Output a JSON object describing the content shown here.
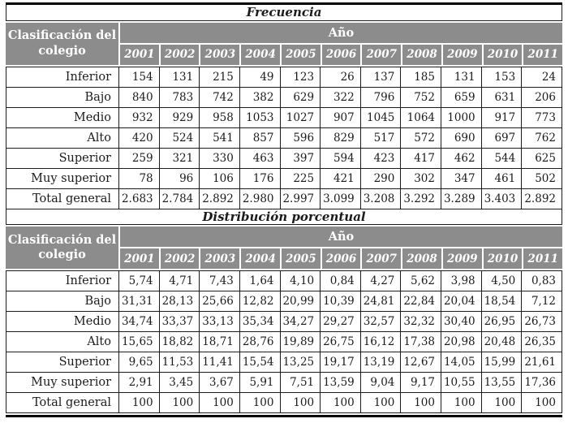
{
  "colors": {
    "header_bg": "#8c8c8c",
    "header_text": "#ffffff",
    "grid_border": "#1c1c1c",
    "text": "#1b1b1b",
    "rule": "#000000"
  },
  "header": {
    "classification_label": "Clasificación del colegio",
    "year_group_label": "Año"
  },
  "years": [
    "2001",
    "2002",
    "2003",
    "2004",
    "2005",
    "2006",
    "2007",
    "2008",
    "2009",
    "2010",
    "2011"
  ],
  "sections": [
    {
      "title": "Frecuencia",
      "rows": [
        {
          "label": "Inferior",
          "values": [
            "154",
            "131",
            "215",
            "49",
            "123",
            "26",
            "137",
            "185",
            "131",
            "153",
            "24"
          ]
        },
        {
          "label": "Bajo",
          "values": [
            "840",
            "783",
            "742",
            "382",
            "629",
            "322",
            "796",
            "752",
            "659",
            "631",
            "206"
          ]
        },
        {
          "label": "Medio",
          "values": [
            "932",
            "929",
            "958",
            "1053",
            "1027",
            "907",
            "1045",
            "1064",
            "1000",
            "917",
            "773"
          ]
        },
        {
          "label": "Alto",
          "values": [
            "420",
            "524",
            "541",
            "857",
            "596",
            "829",
            "517",
            "572",
            "690",
            "697",
            "762"
          ]
        },
        {
          "label": "Superior",
          "values": [
            "259",
            "321",
            "330",
            "463",
            "397",
            "594",
            "423",
            "417",
            "462",
            "544",
            "625"
          ]
        },
        {
          "label": "Muy superior",
          "values": [
            "78",
            "96",
            "106",
            "176",
            "225",
            "421",
            "290",
            "302",
            "347",
            "461",
            "502"
          ]
        },
        {
          "label": "Total general",
          "values": [
            "2.683",
            "2.784",
            "2.892",
            "2.980",
            "2.997",
            "3.099",
            "3.208",
            "3.292",
            "3.289",
            "3.403",
            "2.892"
          ]
        }
      ]
    },
    {
      "title": "Distribución porcentual",
      "rows": [
        {
          "label": "Inferior",
          "values": [
            "5,74",
            "4,71",
            "7,43",
            "1,64",
            "4,10",
            "0,84",
            "4,27",
            "5,62",
            "3,98",
            "4,50",
            "0,83"
          ]
        },
        {
          "label": "Bajo",
          "values": [
            "31,31",
            "28,13",
            "25,66",
            "12,82",
            "20,99",
            "10,39",
            "24,81",
            "22,84",
            "20,04",
            "18,54",
            "7,12"
          ]
        },
        {
          "label": "Medio",
          "values": [
            "34,74",
            "33,37",
            "33,13",
            "35,34",
            "34,27",
            "29,27",
            "32,57",
            "32,32",
            "30,40",
            "26,95",
            "26,73"
          ]
        },
        {
          "label": "Alto",
          "values": [
            "15,65",
            "18,82",
            "18,71",
            "28,76",
            "19,89",
            "26,75",
            "16,12",
            "17,38",
            "20,98",
            "20,48",
            "26,35"
          ]
        },
        {
          "label": "Superior",
          "values": [
            "9,65",
            "11,53",
            "11,41",
            "15,54",
            "13,25",
            "19,17",
            "13,19",
            "12,67",
            "14,05",
            "15,99",
            "21,61"
          ]
        },
        {
          "label": "Muy superior",
          "values": [
            "2,91",
            "3,45",
            "3,67",
            "5,91",
            "7,51",
            "13,59",
            "9,04",
            "9,17",
            "10,55",
            "13,55",
            "17,36"
          ]
        },
        {
          "label": "Total general",
          "values": [
            "100",
            "100",
            "100",
            "100",
            "100",
            "100",
            "100",
            "100",
            "100",
            "100",
            "100"
          ]
        }
      ]
    }
  ]
}
